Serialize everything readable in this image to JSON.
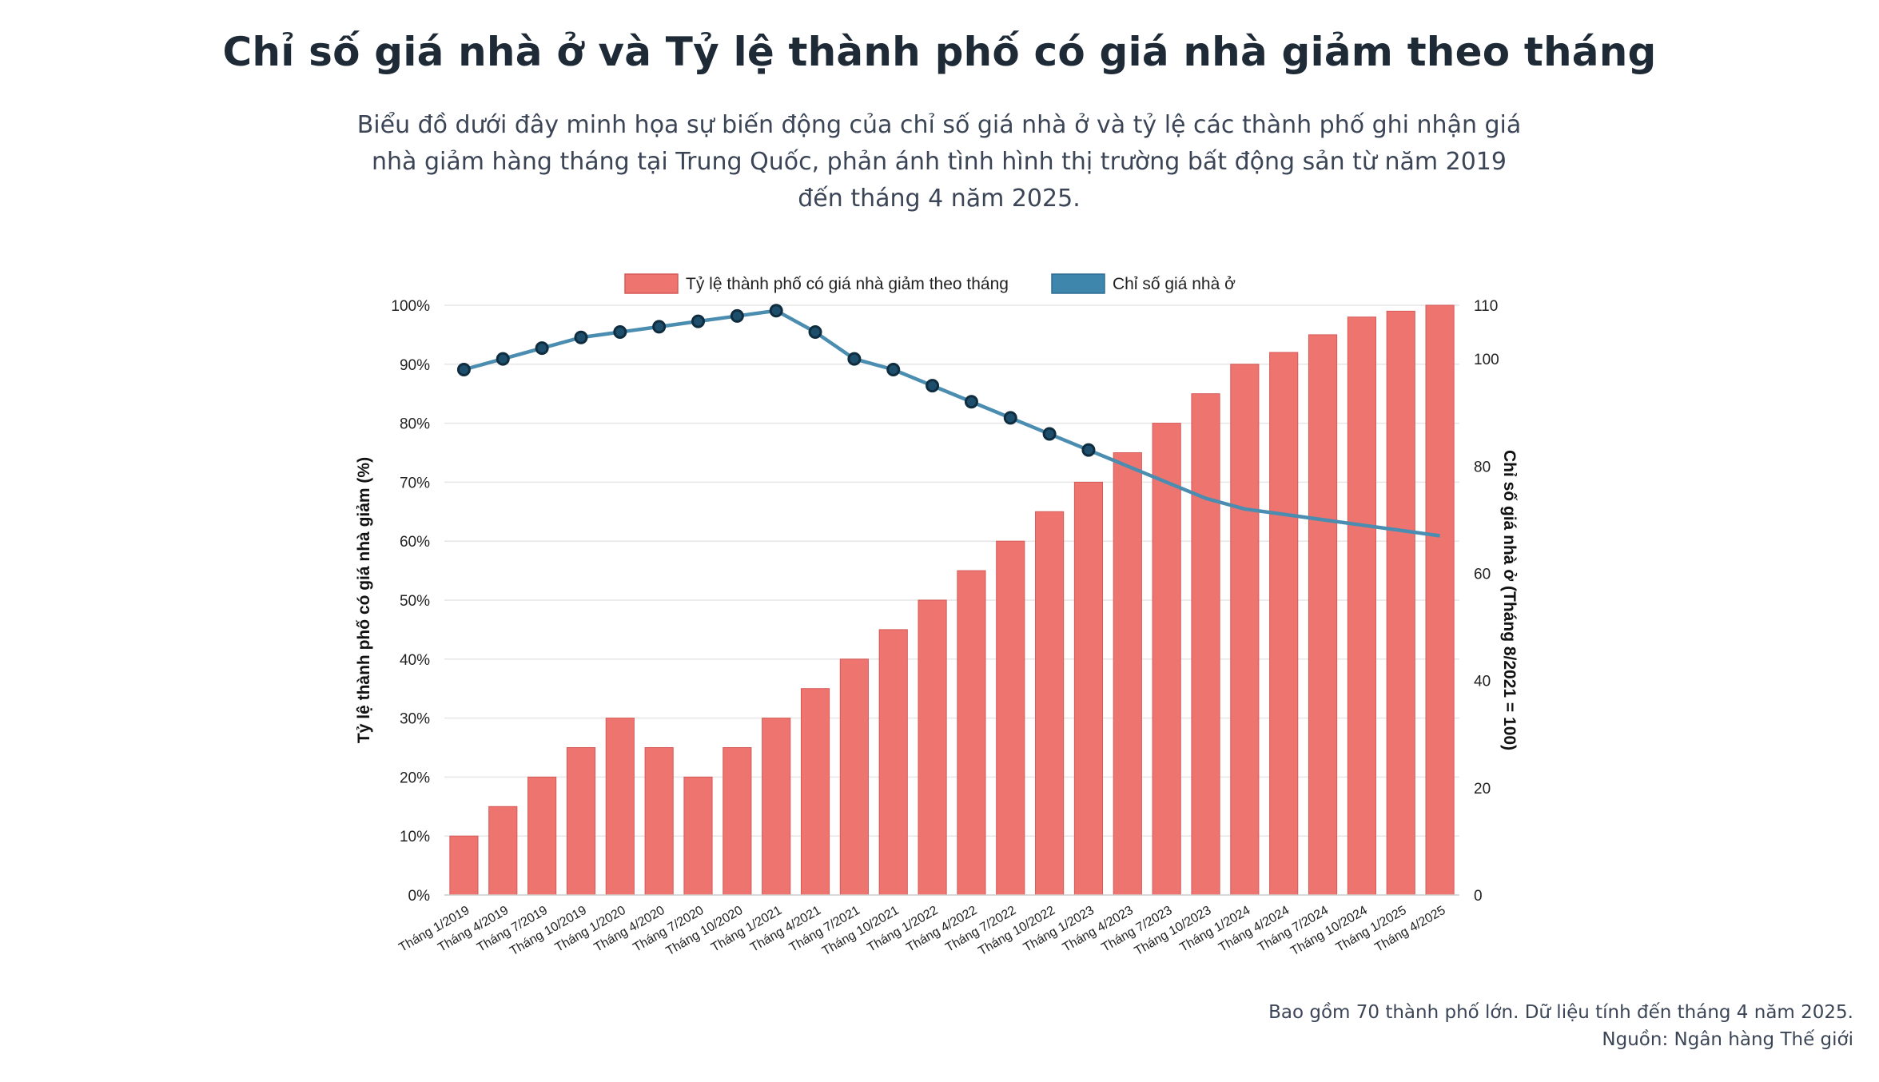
{
  "header": {
    "title": "Chỉ số giá nhà ở và Tỷ lệ thành phố có giá nhà giảm theo tháng",
    "subtitle": "Biểu đồ dưới đây minh họa sự biến động của chỉ số giá nhà ở và tỷ lệ các thành phố ghi nhận giá nhà giảm hàng tháng tại Trung Quốc, phản ánh tình hình thị trường bất động sản từ năm 2019 đến tháng 4 năm 2025."
  },
  "footer": {
    "note": "Bao gồm 70 thành phố lớn. Dữ liệu tính đến tháng 4 năm 2025.",
    "source": "Nguồn: Ngân hàng Thế giới"
  },
  "colors": {
    "bar_fill": "#ee7470",
    "bar_stroke": "#d65a57",
    "line": "#4a8db0",
    "marker_fill": "#1d4e6b",
    "marker_stroke": "#0f2d3f",
    "legend_line": "#3f86ad",
    "grid": "#e6e6e6"
  },
  "chart_data": {
    "type": "bar",
    "categories": [
      "Tháng 1/2019",
      "Tháng 4/2019",
      "Tháng 7/2019",
      "Tháng 10/2019",
      "Tháng 1/2020",
      "Tháng 4/2020",
      "Tháng 7/2020",
      "Tháng 10/2020",
      "Tháng 1/2021",
      "Tháng 4/2021",
      "Tháng 7/2021",
      "Tháng 10/2021",
      "Tháng 1/2022",
      "Tháng 4/2022",
      "Tháng 7/2022",
      "Tháng 10/2022",
      "Tháng 1/2023",
      "Tháng 4/2023",
      "Tháng 7/2023",
      "Tháng 10/2023",
      "Tháng 1/2024",
      "Tháng 4/2024",
      "Tháng 7/2024",
      "Tháng 10/2024",
      "Tháng 1/2025",
      "Tháng 4/2025"
    ],
    "series": [
      {
        "name": "Tỷ lệ thành phố có giá nhà giảm theo tháng",
        "type": "bar",
        "axis": "left",
        "values": [
          10,
          15,
          20,
          25,
          30,
          25,
          20,
          25,
          30,
          35,
          40,
          45,
          50,
          55,
          60,
          65,
          70,
          75,
          80,
          85,
          90,
          92,
          95,
          98,
          99,
          100
        ]
      },
      {
        "name": "Chỉ số giá nhà ở",
        "type": "line",
        "axis": "right",
        "values": [
          98,
          100,
          102,
          104,
          105,
          106,
          107,
          108,
          109,
          105,
          100,
          98,
          95,
          92,
          89,
          86,
          83,
          80,
          77,
          74,
          72,
          71,
          70,
          69,
          68,
          67
        ]
      }
    ],
    "ylabel_left": "Tỷ lệ thành phố có giá nhà giảm (%)",
    "ylabel_right": "Chỉ số giá nhà ở (Tháng 8/2021 = 100)",
    "ylim_left": [
      0,
      100
    ],
    "ylim_right": [
      0,
      110
    ],
    "yticks_left": [
      "0%",
      "10%",
      "20%",
      "30%",
      "40%",
      "50%",
      "60%",
      "70%",
      "80%",
      "90%",
      "100%"
    ],
    "yticks_right": [
      0,
      20,
      40,
      60,
      80,
      100,
      110
    ],
    "grid": true,
    "legend_position": "top"
  }
}
